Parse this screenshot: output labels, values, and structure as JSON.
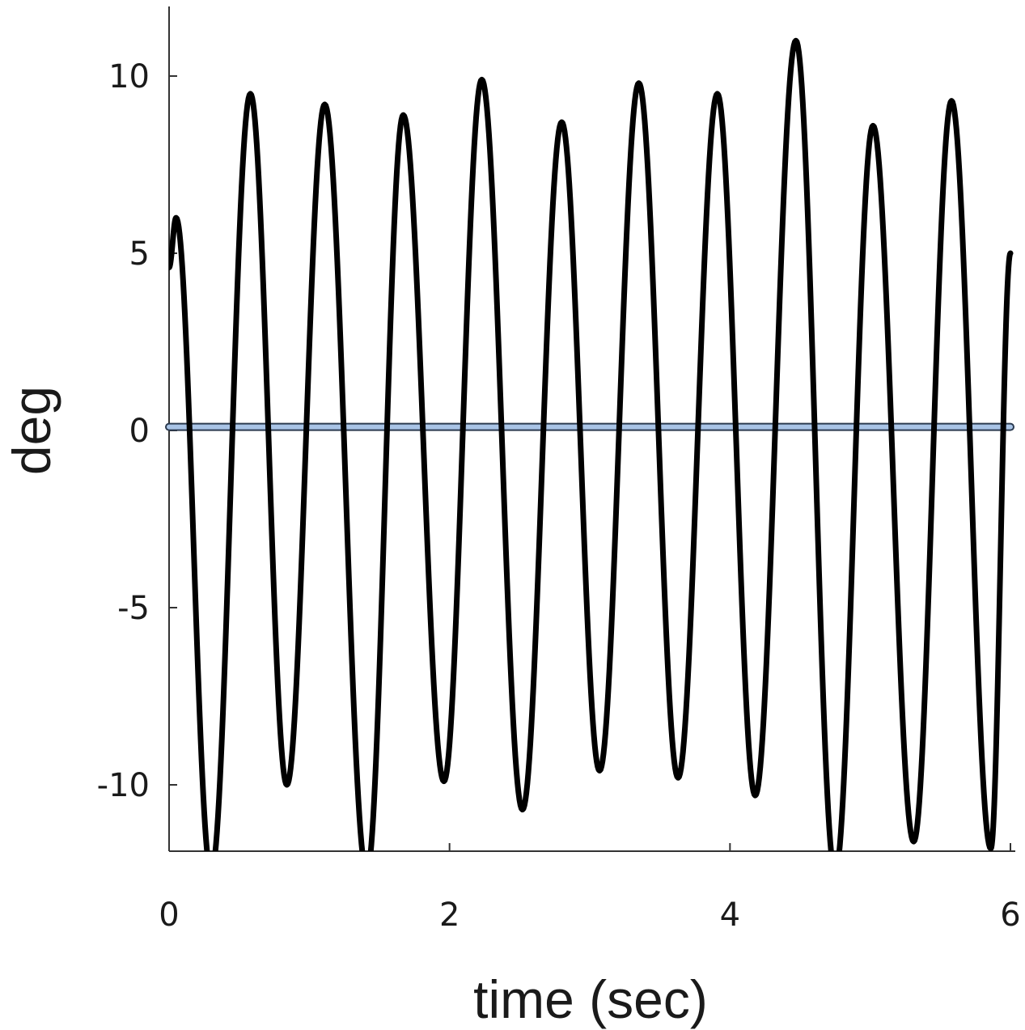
{
  "chart_data": {
    "type": "line",
    "title": "",
    "xlabel": "time (sec)",
    "ylabel": "deg",
    "xlim": [
      0,
      6
    ],
    "ylim": [
      -12,
      12
    ],
    "grid": false,
    "xticks": [
      {
        "value": 0,
        "label": "0"
      },
      {
        "value": 2,
        "label": "2"
      },
      {
        "value": 4,
        "label": "4"
      },
      {
        "value": 6,
        "label": "6"
      }
    ],
    "yticks": [
      {
        "value": 10,
        "label": "10"
      },
      {
        "value": 5,
        "label": "5"
      },
      {
        "value": 0,
        "label": "0"
      },
      {
        "value": -5,
        "label": "-5"
      },
      {
        "value": -10,
        "label": "-10"
      }
    ],
    "series": [
      {
        "color": "#000000",
        "extrema": [
          {
            "t": 0.0,
            "v": 4.6
          },
          {
            "t": 0.05,
            "v": 6.0
          },
          {
            "t": 0.3,
            "v": -12.5
          },
          {
            "t": 0.58,
            "v": 9.5
          },
          {
            "t": 0.84,
            "v": -10.0
          },
          {
            "t": 1.11,
            "v": 9.2
          },
          {
            "t": 1.41,
            "v": -12.5
          },
          {
            "t": 1.67,
            "v": 8.9
          },
          {
            "t": 1.96,
            "v": -9.9
          },
          {
            "t": 2.23,
            "v": 9.9
          },
          {
            "t": 2.52,
            "v": -10.7
          },
          {
            "t": 2.8,
            "v": 8.7
          },
          {
            "t": 3.07,
            "v": -9.6
          },
          {
            "t": 3.35,
            "v": 9.8
          },
          {
            "t": 3.63,
            "v": -9.8
          },
          {
            "t": 3.91,
            "v": 9.5
          },
          {
            "t": 4.18,
            "v": -10.3
          },
          {
            "t": 4.47,
            "v": 11.0
          },
          {
            "t": 4.75,
            "v": -12.5
          },
          {
            "t": 5.02,
            "v": 8.6
          },
          {
            "t": 5.31,
            "v": -11.6
          },
          {
            "t": 5.58,
            "v": 9.3
          },
          {
            "t": 5.86,
            "v": -11.8
          },
          {
            "t": 6.0,
            "v": 5.0
          }
        ]
      },
      {
        "color": "#a9c4e6",
        "edge_color": "#2b3a4f",
        "t": [
          0,
          6
        ],
        "v": [
          0.1,
          0.1
        ]
      }
    ]
  }
}
